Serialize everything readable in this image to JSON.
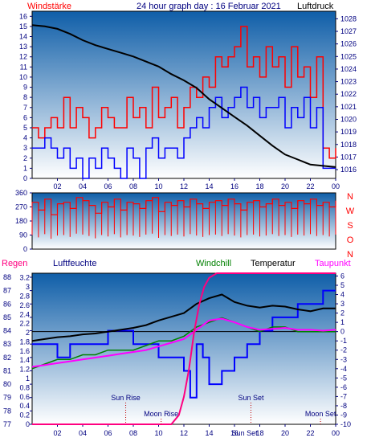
{
  "header": {
    "left_label": "Windstärke",
    "center_title": "24 hour graph day : 16 Februar 2021",
    "right_label": "Luftdruck"
  },
  "colors": {
    "wind_gust": "#ff0000",
    "wind_speed": "#0000ff",
    "pressure": "#000000",
    "direction": "#ff0000",
    "humidity": "#0000ff",
    "windchill": "#008000",
    "temperature": "#000000",
    "dewpoint": "#ff00ff",
    "rain": "#ff0080",
    "zero_line": "#000000",
    "axis_text": "#000080",
    "title_red": "#ff0000",
    "title_blue": "#000080",
    "bg_top": "#0f5ea8",
    "bg_bottom": "#ffffff"
  },
  "chart_data": [
    {
      "type": "line",
      "name": "wind-and-pressure",
      "x_ticks": [
        "02",
        "04",
        "06",
        "08",
        "10",
        "12",
        "14",
        "16",
        "18",
        "20",
        "22",
        "00"
      ],
      "x_range": [
        0,
        24
      ],
      "y_left_ticks": [
        "0",
        "1",
        "2",
        "3",
        "4",
        "5",
        "6",
        "7",
        "8",
        "9",
        "10",
        "11",
        "12",
        "13",
        "14",
        "15",
        "16"
      ],
      "y_left_range": [
        0,
        16.5
      ],
      "y_right_ticks": [
        "1016",
        "1017",
        "1018",
        "1019",
        "1020",
        "1021",
        "1022",
        "1023",
        "1024",
        "1025",
        "1026",
        "1027",
        "1028"
      ],
      "y_right_range": [
        1015.3,
        1028.6
      ],
      "series": [
        {
          "name": "Windstärke gust",
          "axis": "left",
          "x": [
            0,
            0.5,
            1,
            1.5,
            2,
            2.5,
            3,
            3.5,
            4,
            4.5,
            5,
            5.5,
            6,
            6.5,
            7,
            7.5,
            8,
            8.5,
            9,
            9.5,
            10,
            10.5,
            11,
            11.5,
            12,
            12.5,
            13,
            13.5,
            14,
            14.5,
            15,
            15.5,
            16,
            16.5,
            17,
            17.5,
            18,
            18.5,
            19,
            19.5,
            20,
            20.5,
            21,
            21.5,
            22,
            22.5,
            23,
            23.5,
            24
          ],
          "y": [
            5,
            4,
            5,
            6,
            5,
            8,
            5,
            7,
            6,
            4,
            5,
            7,
            6,
            5,
            5,
            8,
            6,
            7,
            5,
            9,
            6,
            7,
            8,
            5,
            7,
            9,
            8,
            10,
            9,
            12,
            11,
            12,
            13,
            15,
            11,
            12,
            10,
            13,
            11,
            12,
            9,
            13,
            10,
            11,
            8,
            12,
            3,
            2,
            3
          ]
        },
        {
          "name": "Windstärke",
          "axis": "left",
          "x": [
            0,
            0.5,
            1,
            1.5,
            2,
            2.5,
            3,
            3.5,
            4,
            4.5,
            5,
            5.5,
            6,
            6.5,
            7,
            7.5,
            8,
            8.5,
            9,
            9.5,
            10,
            10.5,
            11,
            11.5,
            12,
            12.5,
            13,
            13.5,
            14,
            14.5,
            15,
            15.5,
            16,
            16.5,
            17,
            17.5,
            18,
            18.5,
            19,
            19.5,
            20,
            20.5,
            21,
            21.5,
            22,
            22.5,
            23,
            23.5,
            24
          ],
          "y": [
            3,
            3,
            4,
            3,
            2,
            3,
            1,
            2,
            0,
            2,
            1,
            3,
            2,
            1,
            0,
            3,
            2,
            0,
            3,
            4,
            2,
            3,
            3,
            2,
            4,
            5,
            6,
            5,
            7,
            8,
            6,
            7,
            8,
            9,
            7,
            8,
            6,
            7,
            7,
            8,
            5,
            7,
            6,
            8,
            5,
            7,
            1,
            1,
            1
          ]
        },
        {
          "name": "Luftdruck",
          "axis": "right",
          "x": [
            0,
            1,
            2,
            3,
            4,
            5,
            6,
            7,
            8,
            9,
            10,
            11,
            12,
            13,
            14,
            15,
            16,
            17,
            18,
            19,
            20,
            21,
            22,
            23,
            24
          ],
          "y": [
            1027.5,
            1027.4,
            1027.2,
            1026.8,
            1026.3,
            1025.9,
            1025.6,
            1025.3,
            1025.0,
            1024.6,
            1024.2,
            1023.6,
            1023.1,
            1022.5,
            1021.6,
            1020.9,
            1020.2,
            1019.5,
            1018.7,
            1017.9,
            1017.2,
            1016.8,
            1016.4,
            1016.3,
            1016.2
          ]
        }
      ]
    },
    {
      "type": "line",
      "name": "wind-direction",
      "x_range": [
        0,
        24
      ],
      "y_left_ticks": [
        "0",
        "90",
        "180",
        "270",
        "360"
      ],
      "y_left_range": [
        0,
        360
      ],
      "y_right_labels": [
        "N",
        "W",
        "S",
        "O",
        "N"
      ],
      "series": [
        {
          "name": "Windrichtung",
          "x": [
            0,
            0.5,
            1,
            1.5,
            2,
            2.5,
            3,
            3.5,
            4,
            4.5,
            5,
            5.5,
            6,
            6.5,
            7,
            7.5,
            8,
            8.5,
            9,
            9.5,
            10,
            10.5,
            11,
            11.5,
            12,
            12.5,
            13,
            13.5,
            14,
            14.5,
            15,
            15.5,
            16,
            16.5,
            17,
            17.5,
            18,
            18.5,
            19,
            19.5,
            20,
            20.5,
            21,
            21.5,
            22,
            22.5,
            23,
            23.5,
            24
          ],
          "y": [
            300,
            250,
            320,
            220,
            290,
            300,
            260,
            330,
            310,
            280,
            230,
            300,
            270,
            320,
            250,
            300,
            290,
            260,
            310,
            330,
            240,
            300,
            280,
            310,
            270,
            320,
            290,
            260,
            300,
            310,
            280,
            320,
            290,
            250,
            300,
            310,
            270,
            290,
            320,
            280,
            300,
            260,
            310,
            290,
            320,
            280,
            300,
            270,
            310
          ]
        }
      ]
    },
    {
      "type": "line",
      "name": "humidity-temperature",
      "x_ticks": [
        "02",
        "04",
        "06",
        "08",
        "10",
        "12",
        "14",
        "16",
        "18",
        "20",
        "22",
        "00"
      ],
      "x_range": [
        0,
        24
      ],
      "y_left_humidity_ticks": [
        "77",
        "78",
        "79",
        "80",
        "81",
        "82",
        "83",
        "84",
        "85",
        "86",
        "87",
        "88"
      ],
      "y_left_humidity_range": [
        77,
        88.3
      ],
      "y_left_rain_ticks": [
        "0",
        "0.2",
        "0.4",
        "0.6",
        "0.8",
        "1",
        "1.2",
        "1.4",
        "1.6",
        "1.8",
        "2",
        "2.2",
        "2.4",
        "2.6",
        "2.8",
        "3",
        "3.2"
      ],
      "y_left_rain_range": [
        0,
        3.3
      ],
      "y_right_ticks": [
        "-10",
        "-9",
        "-8",
        "-7",
        "-6",
        "-5",
        "-4",
        "-3",
        "-2",
        "-1",
        "0",
        "1",
        "2",
        "3",
        "4",
        "5",
        "6"
      ],
      "y_right_range": [
        -10,
        6.3
      ],
      "labels": {
        "rain": "Regen",
        "humidity": "Luftfeuchte",
        "windchill": "Windchill",
        "temperature": "Temperatur",
        "dewpoint": "Taupunkt"
      },
      "series": [
        {
          "name": "Luftfeuchte",
          "axis": "humidity",
          "x": [
            0,
            1,
            2,
            3,
            4,
            5,
            6,
            7,
            8,
            9,
            10,
            11,
            12,
            12.5,
            13,
            13.5,
            14,
            15,
            16,
            17,
            18,
            19,
            20,
            21,
            22,
            23,
            24
          ],
          "y": [
            83,
            83,
            82,
            83,
            83,
            83,
            84,
            84,
            83,
            83,
            82,
            82,
            81,
            79,
            83,
            82,
            80,
            81,
            82,
            83,
            84,
            85,
            85,
            86,
            86,
            87,
            87
          ]
        },
        {
          "name": "Windchill",
          "axis": "temp",
          "x": [
            0,
            1,
            2,
            3,
            4,
            5,
            6,
            7,
            8,
            9,
            10,
            11,
            12,
            13,
            14,
            15,
            16,
            17,
            18,
            19,
            20,
            21,
            22,
            23,
            24
          ],
          "y": [
            -4,
            -3.5,
            -3,
            -3,
            -2.5,
            -2.5,
            -2,
            -2,
            -2,
            -1.5,
            -1,
            -1,
            -0.5,
            0.5,
            1,
            1.5,
            1,
            0.5,
            0,
            0.5,
            0.5,
            0,
            0,
            0,
            0
          ]
        },
        {
          "name": "Temperatur",
          "axis": "temp",
          "x": [
            0,
            1,
            2,
            3,
            4,
            5,
            6,
            7,
            8,
            9,
            10,
            11,
            12,
            13,
            14,
            15,
            16,
            17,
            18,
            19,
            20,
            21,
            22,
            23,
            24
          ],
          "y": [
            -1,
            -0.8,
            -0.6,
            -0.5,
            -0.3,
            -0.2,
            0,
            0.2,
            0.4,
            0.7,
            1.2,
            1.6,
            2.0,
            3.0,
            3.6,
            4.0,
            3.2,
            2.8,
            2.6,
            2.8,
            2.7,
            2.4,
            2.2,
            2.5,
            2.5
          ]
        },
        {
          "name": "Taupunkt",
          "axis": "temp",
          "x": [
            0,
            1,
            2,
            3,
            4,
            5,
            6,
            7,
            8,
            9,
            10,
            11,
            12,
            13,
            14,
            15,
            16,
            17,
            18,
            19,
            20,
            21,
            22,
            23,
            24
          ],
          "y": [
            -3.8,
            -3.6,
            -3.4,
            -3.2,
            -3,
            -2.8,
            -2.6,
            -2.4,
            -2.2,
            -2,
            -1.6,
            -1.2,
            -0.8,
            0.2,
            1.2,
            1.4,
            1.0,
            0.5,
            0.2,
            0.3,
            0.4,
            0.2,
            0.2,
            0.1,
            0.2
          ]
        },
        {
          "name": "Regen",
          "axis": "rain",
          "x": [
            0,
            11,
            11.6,
            12,
            12.4,
            12.8,
            13.2,
            13.6,
            14,
            14.6,
            15,
            24
          ],
          "y": [
            0,
            0,
            0.2,
            0.6,
            1.2,
            2.0,
            2.6,
            3.0,
            3.2,
            3.3,
            3.3,
            3.3
          ]
        }
      ],
      "annotations": [
        {
          "text": "Sun Rise",
          "x": 7.4
        },
        {
          "text": "Moon Rise",
          "x": 10.2
        },
        {
          "text": "Sun Set",
          "x": 17.3
        },
        {
          "text": "Moon Set",
          "x": 22.8
        },
        {
          "text": "Sun Set",
          "x": 16.8
        }
      ]
    }
  ]
}
